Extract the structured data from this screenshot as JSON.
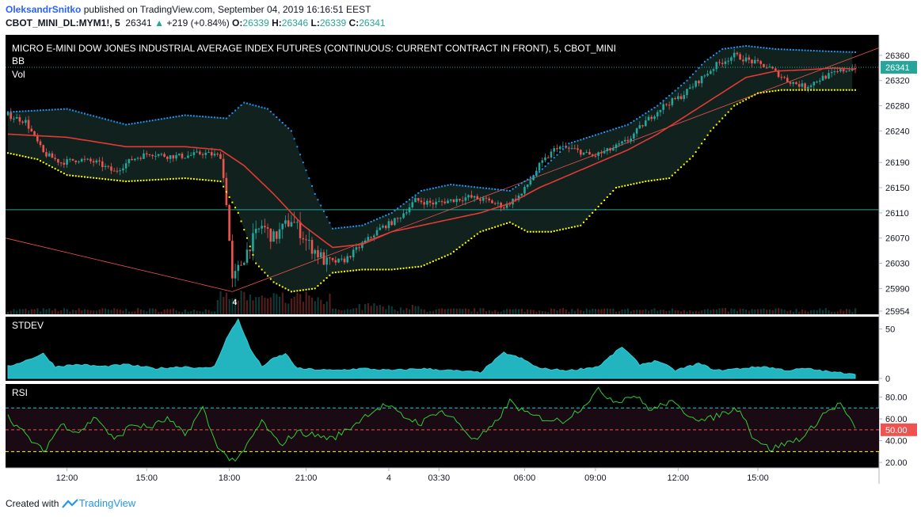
{
  "header": {
    "author": "OleksandrSnitko",
    "published_text": "published on TradingView.com, September 04, 2019 16:16:51 EEST",
    "symbol": "CBOT_MINI_DL:MYM1!, 5",
    "last": "26341",
    "change": "+219 (+0.84%)",
    "o_label": "O:",
    "o_value": "26339",
    "h_label": "H:",
    "h_value": "26346",
    "l_label": "L:",
    "l_value": "26339",
    "c_label": "C:",
    "c_value": "26341"
  },
  "footer": {
    "created_with": "Created with",
    "brand": "TradingView"
  },
  "colors": {
    "up": "#26a69a",
    "down": "#ef5350",
    "bb_upper": "#2196f3",
    "bb_basis": "#e53935",
    "bb_lower": "#ffff00",
    "stdev": "#22b5bf",
    "rsi": "#33cc33",
    "rsi_bands": "#26c6da",
    "rsi_mid": "#ef5350",
    "background": "#000000"
  },
  "chart_data": [
    {
      "type": "candlestick",
      "title": "MICRO E-MINI DOW JONES INDUSTRIAL AVERAGE INDEX FUTURES (CONTINUOUS: CURRENT CONTRACT IN FRONT), 5, CBOT_MINI",
      "indicators": [
        "BB",
        "Vol"
      ],
      "y_ticks": [
        "26360",
        "26320",
        "26280",
        "26240",
        "26190",
        "26150",
        "26110",
        "26070",
        "26030",
        "25990",
        "25954"
      ],
      "last_price_label": "26341",
      "event_marker": "4",
      "ylim": [
        25954,
        26380
      ],
      "x_ticks": [
        "12:00",
        "15:00",
        "18:00",
        "21:00",
        "4",
        "03:30",
        "06:00",
        "09:00",
        "12:00",
        "15:00"
      ],
      "price_path": [
        [
          0,
          26265
        ],
        [
          6,
          26255
        ],
        [
          12,
          26205
        ],
        [
          18,
          26190
        ],
        [
          24,
          26195
        ],
        [
          30,
          26190
        ],
        [
          36,
          26175
        ],
        [
          42,
          26195
        ],
        [
          48,
          26205
        ],
        [
          54,
          26200
        ],
        [
          60,
          26200
        ],
        [
          66,
          26205
        ],
        [
          72,
          26200
        ],
        [
          74,
          26130
        ],
        [
          76,
          26000
        ],
        [
          78,
          26020
        ],
        [
          82,
          26060
        ],
        [
          86,
          26090
        ],
        [
          90,
          26070
        ],
        [
          96,
          26100
        ],
        [
          102,
          26060
        ],
        [
          108,
          26030
        ],
        [
          114,
          26035
        ],
        [
          120,
          26060
        ],
        [
          126,
          26085
        ],
        [
          132,
          26100
        ],
        [
          138,
          26130
        ],
        [
          144,
          26125
        ],
        [
          150,
          26130
        ],
        [
          156,
          26135
        ],
        [
          162,
          26130
        ],
        [
          168,
          26120
        ],
        [
          174,
          26140
        ],
        [
          180,
          26185
        ],
        [
          186,
          26215
        ],
        [
          192,
          26210
        ],
        [
          198,
          26200
        ],
        [
          204,
          26210
        ],
        [
          210,
          26225
        ],
        [
          216,
          26255
        ],
        [
          222,
          26280
        ],
        [
          228,
          26295
        ],
        [
          234,
          26320
        ],
        [
          240,
          26345
        ],
        [
          246,
          26360
        ],
        [
          252,
          26350
        ],
        [
          258,
          26340
        ],
        [
          264,
          26320
        ],
        [
          270,
          26310
        ],
        [
          276,
          26325
        ],
        [
          282,
          26335
        ],
        [
          287,
          26341
        ]
      ],
      "bb_upper_path": [
        [
          0,
          26270
        ],
        [
          20,
          26275
        ],
        [
          40,
          26250
        ],
        [
          60,
          26265
        ],
        [
          74,
          26260
        ],
        [
          80,
          26285
        ],
        [
          88,
          26275
        ],
        [
          96,
          26240
        ],
        [
          104,
          26140
        ],
        [
          110,
          26085
        ],
        [
          120,
          26090
        ],
        [
          130,
          26110
        ],
        [
          140,
          26145
        ],
        [
          150,
          26155
        ],
        [
          160,
          26150
        ],
        [
          170,
          26145
        ],
        [
          180,
          26175
        ],
        [
          190,
          26220
        ],
        [
          200,
          26235
        ],
        [
          210,
          26250
        ],
        [
          220,
          26280
        ],
        [
          230,
          26320
        ],
        [
          236,
          26350
        ],
        [
          242,
          26370
        ],
        [
          250,
          26375
        ],
        [
          260,
          26370
        ],
        [
          270,
          26368
        ],
        [
          280,
          26366
        ],
        [
          287,
          26365
        ]
      ],
      "bb_basis_path": [
        [
          0,
          26235
        ],
        [
          20,
          26230
        ],
        [
          40,
          26215
        ],
        [
          60,
          26215
        ],
        [
          72,
          26210
        ],
        [
          80,
          26185
        ],
        [
          90,
          26140
        ],
        [
          100,
          26090
        ],
        [
          110,
          26055
        ],
        [
          120,
          26060
        ],
        [
          130,
          26080
        ],
        [
          140,
          26090
        ],
        [
          150,
          26100
        ],
        [
          160,
          26110
        ],
        [
          170,
          26125
        ],
        [
          180,
          26150
        ],
        [
          190,
          26170
        ],
        [
          200,
          26190
        ],
        [
          210,
          26210
        ],
        [
          220,
          26235
        ],
        [
          230,
          26265
        ],
        [
          240,
          26295
        ],
        [
          250,
          26325
        ],
        [
          260,
          26335
        ],
        [
          270,
          26337
        ],
        [
          280,
          26340
        ],
        [
          287,
          26338
        ]
      ],
      "bb_lower_path": [
        [
          0,
          26205
        ],
        [
          10,
          26195
        ],
        [
          20,
          26170
        ],
        [
          40,
          26160
        ],
        [
          60,
          26165
        ],
        [
          72,
          26160
        ],
        [
          78,
          26110
        ],
        [
          84,
          26030
        ],
        [
          90,
          26000
        ],
        [
          96,
          25985
        ],
        [
          104,
          25990
        ],
        [
          110,
          26015
        ],
        [
          120,
          26020
        ],
        [
          130,
          26020
        ],
        [
          140,
          26025
        ],
        [
          150,
          26045
        ],
        [
          160,
          26080
        ],
        [
          170,
          26095
        ],
        [
          176,
          26080
        ],
        [
          184,
          26080
        ],
        [
          194,
          26090
        ],
        [
          200,
          26120
        ],
        [
          206,
          26150
        ],
        [
          216,
          26160
        ],
        [
          224,
          26165
        ],
        [
          232,
          26200
        ],
        [
          238,
          26240
        ],
        [
          246,
          26280
        ],
        [
          254,
          26300
        ],
        [
          262,
          26305
        ],
        [
          270,
          26305
        ],
        [
          287,
          26305
        ]
      ],
      "volume_scale": "relative"
    },
    {
      "type": "area",
      "title": "STDEV",
      "y_ticks": [
        "50",
        "0"
      ],
      "ylim": [
        0,
        60
      ],
      "path": [
        [
          0,
          12
        ],
        [
          6,
          18
        ],
        [
          12,
          25
        ],
        [
          16,
          12
        ],
        [
          24,
          14
        ],
        [
          32,
          12
        ],
        [
          40,
          14
        ],
        [
          50,
          10
        ],
        [
          60,
          12
        ],
        [
          66,
          10
        ],
        [
          70,
          12
        ],
        [
          74,
          40
        ],
        [
          78,
          60
        ],
        [
          82,
          30
        ],
        [
          86,
          12
        ],
        [
          90,
          20
        ],
        [
          94,
          25
        ],
        [
          98,
          10
        ],
        [
          110,
          8
        ],
        [
          120,
          10
        ],
        [
          130,
          8
        ],
        [
          140,
          10
        ],
        [
          150,
          8
        ],
        [
          160,
          6
        ],
        [
          168,
          26
        ],
        [
          174,
          20
        ],
        [
          180,
          10
        ],
        [
          190,
          8
        ],
        [
          200,
          12
        ],
        [
          208,
          32
        ],
        [
          214,
          14
        ],
        [
          220,
          18
        ],
        [
          226,
          8
        ],
        [
          234,
          15
        ],
        [
          240,
          8
        ],
        [
          248,
          10
        ],
        [
          256,
          12
        ],
        [
          264,
          8
        ],
        [
          270,
          10
        ],
        [
          280,
          6
        ],
        [
          287,
          5
        ]
      ]
    },
    {
      "type": "line",
      "title": "RSI",
      "y_ticks": [
        "80.00",
        "60.00",
        "50.00",
        "40.00",
        "20.00"
      ],
      "bands": [
        30,
        70
      ],
      "ylim": [
        15,
        92
      ],
      "path": [
        [
          0,
          62
        ],
        [
          6,
          45
        ],
        [
          12,
          30
        ],
        [
          18,
          55
        ],
        [
          24,
          48
        ],
        [
          30,
          62
        ],
        [
          36,
          40
        ],
        [
          42,
          55
        ],
        [
          48,
          52
        ],
        [
          54,
          60
        ],
        [
          60,
          45
        ],
        [
          66,
          70
        ],
        [
          70,
          40
        ],
        [
          74,
          25
        ],
        [
          78,
          22
        ],
        [
          82,
          40
        ],
        [
          86,
          58
        ],
        [
          92,
          36
        ],
        [
          98,
          48
        ],
        [
          104,
          45
        ],
        [
          110,
          42
        ],
        [
          116,
          52
        ],
        [
          122,
          65
        ],
        [
          128,
          73
        ],
        [
          134,
          62
        ],
        [
          140,
          56
        ],
        [
          146,
          68
        ],
        [
          152,
          58
        ],
        [
          158,
          40
        ],
        [
          164,
          52
        ],
        [
          170,
          76
        ],
        [
          176,
          64
        ],
        [
          182,
          60
        ],
        [
          188,
          58
        ],
        [
          194,
          70
        ],
        [
          200,
          86
        ],
        [
          206,
          76
        ],
        [
          212,
          82
        ],
        [
          218,
          68
        ],
        [
          224,
          76
        ],
        [
          230,
          65
        ],
        [
          236,
          58
        ],
        [
          242,
          65
        ],
        [
          248,
          70
        ],
        [
          252,
          45
        ],
        [
          258,
          32
        ],
        [
          264,
          38
        ],
        [
          270,
          44
        ],
        [
          276,
          64
        ],
        [
          282,
          74
        ],
        [
          287,
          50
        ]
      ]
    }
  ]
}
